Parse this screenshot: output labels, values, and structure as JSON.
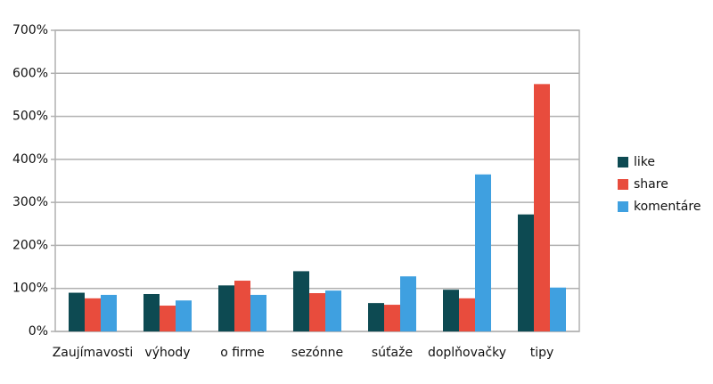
{
  "chart_data": {
    "type": "bar",
    "categories": [
      "Zaujímavosti",
      "výhody",
      "o firme",
      "sezónne",
      "súťaže",
      "doplňovačky",
      "tipy"
    ],
    "series": [
      {
        "name": "like",
        "color": "#0d4a52",
        "values": [
          90,
          87,
          107,
          140,
          66,
          97,
          272
        ]
      },
      {
        "name": "share",
        "color": "#e84c3d",
        "values": [
          77,
          60,
          118,
          89,
          62,
          77,
          575
        ]
      },
      {
        "name": "komentáre",
        "color": "#3fa0e0",
        "values": [
          85,
          72,
          85,
          95,
          128,
          365,
          102
        ]
      }
    ],
    "ylim": [
      0,
      700
    ],
    "yticks": [
      {
        "value": 0,
        "label": "0%"
      },
      {
        "value": 100,
        "label": "100%"
      },
      {
        "value": 200,
        "label": "200%"
      },
      {
        "value": 300,
        "label": "300%"
      },
      {
        "value": 400,
        "label": "400%"
      },
      {
        "value": 500,
        "label": "500%"
      },
      {
        "value": 600,
        "label": "600%"
      },
      {
        "value": 700,
        "label": "700%"
      }
    ],
    "grid": true,
    "legend": "right"
  }
}
